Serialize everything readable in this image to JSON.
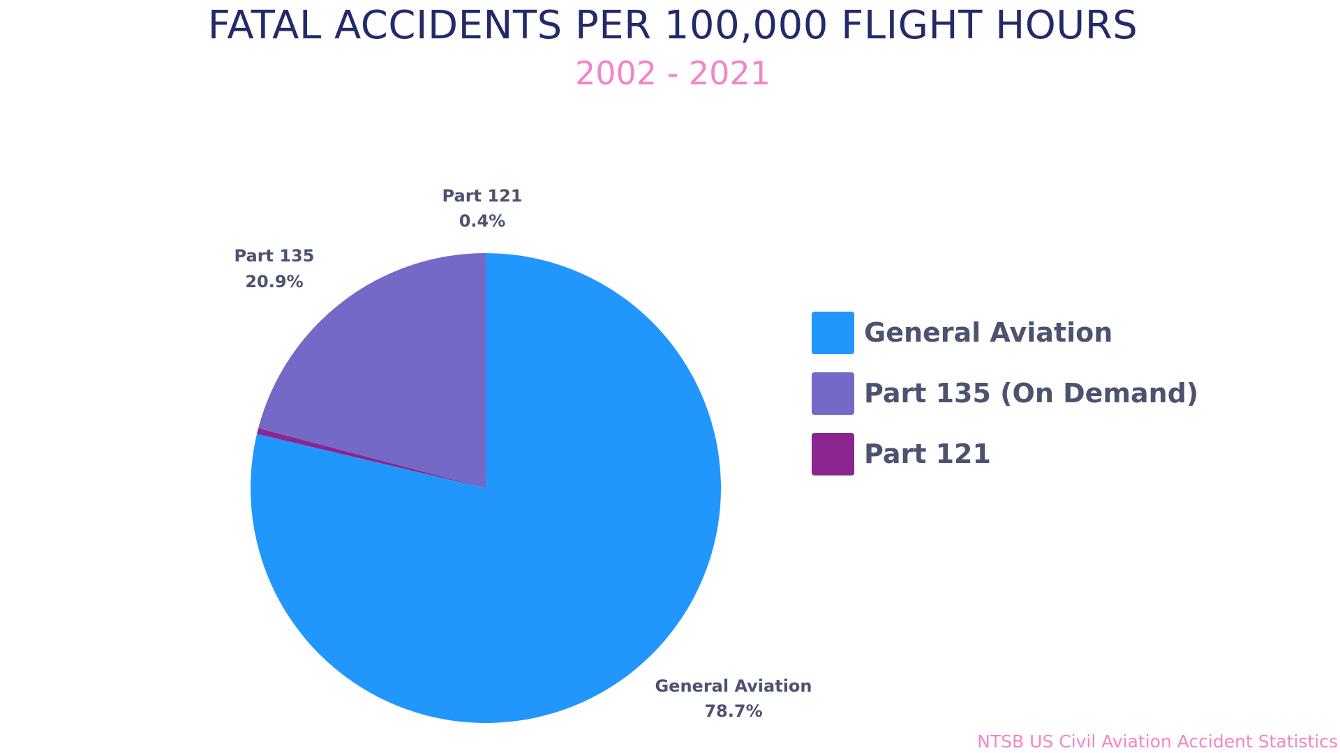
{
  "chart_data": {
    "type": "pie",
    "title": "FATAL ACCIDENTS PER 100,000 FLIGHT HOURS",
    "subtitle": "2002 - 2021",
    "slices": [
      {
        "label": "General Aviation",
        "value": 78.7,
        "value_label": "78.7%",
        "legend": "General Aviation",
        "color": "#2196fd"
      },
      {
        "label": "Part 121",
        "value": 0.4,
        "value_label": "0.4%",
        "legend": "Part 121",
        "color": "#8b2590"
      },
      {
        "label": "Part 135",
        "value": 20.9,
        "value_label": "20.9%",
        "legend": "Part 135 (On Demand)",
        "color": "#7469c7"
      }
    ],
    "legend_order": [
      0,
      2,
      1
    ],
    "legend_position": "right",
    "start_angle_deg": 0,
    "direction": "clockwise",
    "source": "NTSB US Civil Aviation Accident Statistics"
  }
}
